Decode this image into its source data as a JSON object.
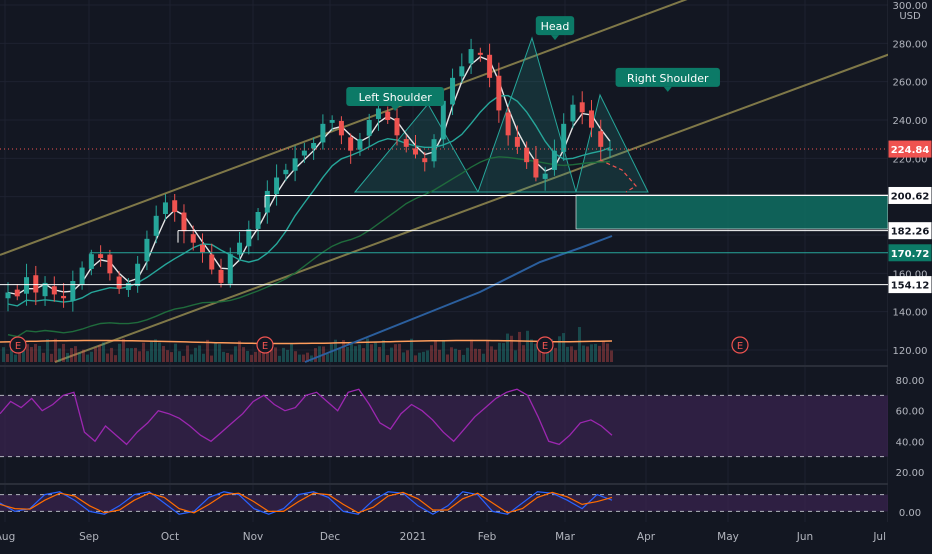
{
  "chart_data": {
    "type": "candlestick",
    "currency": "USD",
    "price_axis": {
      "min": 120,
      "max": 300,
      "ticks": [
        {
          "v": 300,
          "label": "300.00"
        },
        {
          "v": 280,
          "label": "280.00"
        },
        {
          "v": 260,
          "label": "260.00"
        },
        {
          "v": 240,
          "label": "240.00"
        },
        {
          "v": 220,
          "label": "220.00"
        },
        {
          "v": 200,
          "label": "200.00"
        },
        {
          "v": 180,
          "label": "180.00"
        },
        {
          "v": 160,
          "label": "160.00"
        },
        {
          "v": 140,
          "label": "140.00"
        },
        {
          "v": 120,
          "label": "120.00"
        }
      ]
    },
    "time_axis": {
      "labels": [
        "Aug",
        "Sep",
        "Oct",
        "Nov",
        "Dec",
        "2021",
        "Feb",
        "Mar",
        "Apr",
        "May",
        "Jun",
        "Jul"
      ]
    },
    "price_tags": [
      {
        "value": 224.84,
        "label": "224.84",
        "style": "last"
      },
      {
        "value": 200.62,
        "label": "200.62",
        "style": "level"
      },
      {
        "value": 182.26,
        "label": "182.26",
        "style": "level"
      },
      {
        "value": 170.72,
        "label": "170.72",
        "style": "accent"
      },
      {
        "value": 154.12,
        "label": "154.12",
        "style": "level"
      }
    ],
    "annotations": [
      {
        "text": "Left Shoulder",
        "date": 0.445,
        "price": 252
      },
      {
        "text": "Head",
        "date": 0.625,
        "price": 289
      },
      {
        "text": "Right Shoulder",
        "date": 0.752,
        "price": 262
      }
    ],
    "earnings_marker": "E",
    "close_series": [
      150,
      148,
      158,
      150,
      155,
      149,
      147,
      156,
      163,
      170,
      168,
      160,
      152,
      155,
      165,
      178,
      190,
      197,
      192,
      182,
      176,
      171,
      162,
      155,
      170,
      176,
      183,
      192,
      203,
      210,
      214,
      220,
      224,
      228,
      238,
      240,
      232,
      224,
      230,
      240,
      246,
      240,
      232,
      226,
      222,
      218,
      230,
      250,
      262,
      268,
      277,
      274,
      262,
      245,
      232,
      226,
      218,
      210,
      212,
      224,
      238,
      248,
      244,
      236,
      226,
      224.84
    ],
    "rsi": {
      "ticks": [
        {
          "v": 80,
          "label": "80.00"
        },
        {
          "v": 60,
          "label": "60.00"
        },
        {
          "v": 40,
          "label": "40.00"
        },
        {
          "v": 20,
          "label": "20.00"
        }
      ],
      "upper": 70,
      "lower": 30,
      "values": [
        58,
        66,
        62,
        68,
        60,
        64,
        70,
        72,
        46,
        40,
        50,
        44,
        38,
        46,
        52,
        60,
        58,
        55,
        50,
        44,
        40,
        46,
        52,
        58,
        66,
        70,
        64,
        60,
        62,
        70,
        72,
        66,
        60,
        72,
        74,
        64,
        52,
        48,
        58,
        64,
        60,
        54,
        46,
        40,
        48,
        56,
        62,
        68,
        72,
        74,
        70,
        56,
        40,
        38,
        44,
        52,
        54,
        50,
        44
      ]
    },
    "stoch": {
      "ticks": [
        {
          "v": 0,
          "label": "0.00"
        }
      ],
      "k": [
        50,
        20,
        30,
        80,
        90,
        60,
        20,
        10,
        40,
        80,
        90,
        50,
        10,
        20,
        70,
        90,
        80,
        30,
        10,
        30,
        80,
        90,
        70,
        20,
        10,
        60,
        90,
        85,
        40,
        10,
        40,
        90,
        80,
        20,
        10,
        50,
        90,
        85,
        60,
        30,
        80,
        60
      ],
      "d": [
        45,
        30,
        28,
        60,
        85,
        75,
        40,
        15,
        25,
        60,
        85,
        70,
        30,
        15,
        45,
        80,
        85,
        55,
        20,
        20,
        55,
        85,
        80,
        45,
        15,
        35,
        75,
        88,
        65,
        25,
        25,
        65,
        85,
        50,
        15,
        30,
        70,
        88,
        72,
        45,
        55,
        70
      ]
    },
    "colors": {
      "up": "#26a69a",
      "down": "#ef5350",
      "channel": "#9b9152",
      "ma_fast": "#e6e6e6",
      "ma_mid": "#26a69a",
      "ma_slow": "#2b5f9e",
      "ma_long": "#1f6b3c",
      "rsi_line": "#9c27b0",
      "rsi_band": "#3b2350",
      "level_line": "#ffffff",
      "accent_tag": "#0c7a67",
      "last_tag": "#ef5350",
      "zone": "#0f6e62"
    }
  }
}
